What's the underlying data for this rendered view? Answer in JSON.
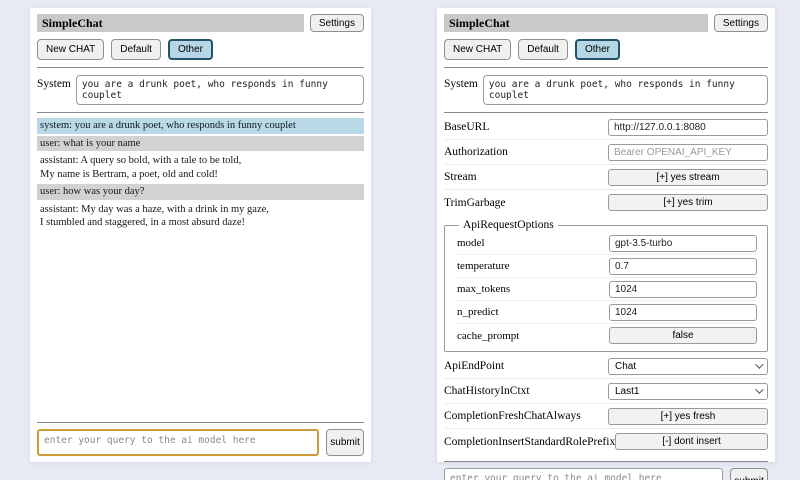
{
  "header": {
    "title": "SimpleChat",
    "settings_label": "Settings",
    "chat_buttons": {
      "new": "New CHAT",
      "default": "Default",
      "other": "Other"
    },
    "system_label": "System",
    "system_prompt": "you are a drunk poet, who responds in funny couplet"
  },
  "chat": {
    "messages": [
      {
        "role": "system",
        "text": "system: you are a drunk poet, who responds in funny couplet"
      },
      {
        "role": "user",
        "text": "user: what is your name"
      },
      {
        "role": "assistant",
        "text": "assistant: A query so bold, with a tale to be told,\nMy name is Bertram, a poet, old and cold!"
      },
      {
        "role": "user",
        "text": "user: how was your day?"
      },
      {
        "role": "assistant",
        "text": "assistant: My day was a haze, with a drink in my gaze,\nI stumbled and staggered, in a most absurd daze!"
      }
    ]
  },
  "query": {
    "placeholder": "enter your query to the ai model here",
    "submit_label": "submit"
  },
  "settings": {
    "rows": [
      {
        "label": "BaseURL",
        "type": "input",
        "value": "http://127.0.0.1:8080"
      },
      {
        "label": "Authorization",
        "type": "input",
        "placeholder": "Bearer OPENAI_API_KEY"
      },
      {
        "label": "Stream",
        "type": "button",
        "value": "[+] yes stream"
      },
      {
        "label": "TrimGarbage",
        "type": "button",
        "value": "[+] yes trim"
      }
    ],
    "fieldset": {
      "legend": "ApiRequestOptions",
      "rows": [
        {
          "label": "model",
          "type": "input",
          "value": "gpt-3.5-turbo"
        },
        {
          "label": "temperature",
          "type": "input",
          "value": "0.7"
        },
        {
          "label": "max_tokens",
          "type": "input",
          "value": "1024"
        },
        {
          "label": "n_predict",
          "type": "input",
          "value": "1024"
        },
        {
          "label": "cache_prompt",
          "type": "button",
          "value": "false"
        }
      ]
    },
    "rows_after": [
      {
        "label": "ApiEndPoint",
        "type": "select",
        "value": "Chat"
      },
      {
        "label": "ChatHistoryInCtxt",
        "type": "select",
        "value": "Last1"
      },
      {
        "label": "CompletionFreshChatAlways",
        "type": "button",
        "value": "[+] yes fresh"
      },
      {
        "label": "CompletionInsertStandardRolePrefix",
        "type": "button",
        "value": "[-] dont insert"
      }
    ]
  },
  "colors": {
    "page_bg": "#e7eaf3",
    "titlebar_bg": "#c9c9c9",
    "active_tab_bg": "#b7d6e6",
    "active_tab_border": "#23536b",
    "system_msg_bg": "#b9d9e7",
    "user_msg_bg": "#d2d2d2",
    "focused_input_border": "#cd9a3c"
  }
}
